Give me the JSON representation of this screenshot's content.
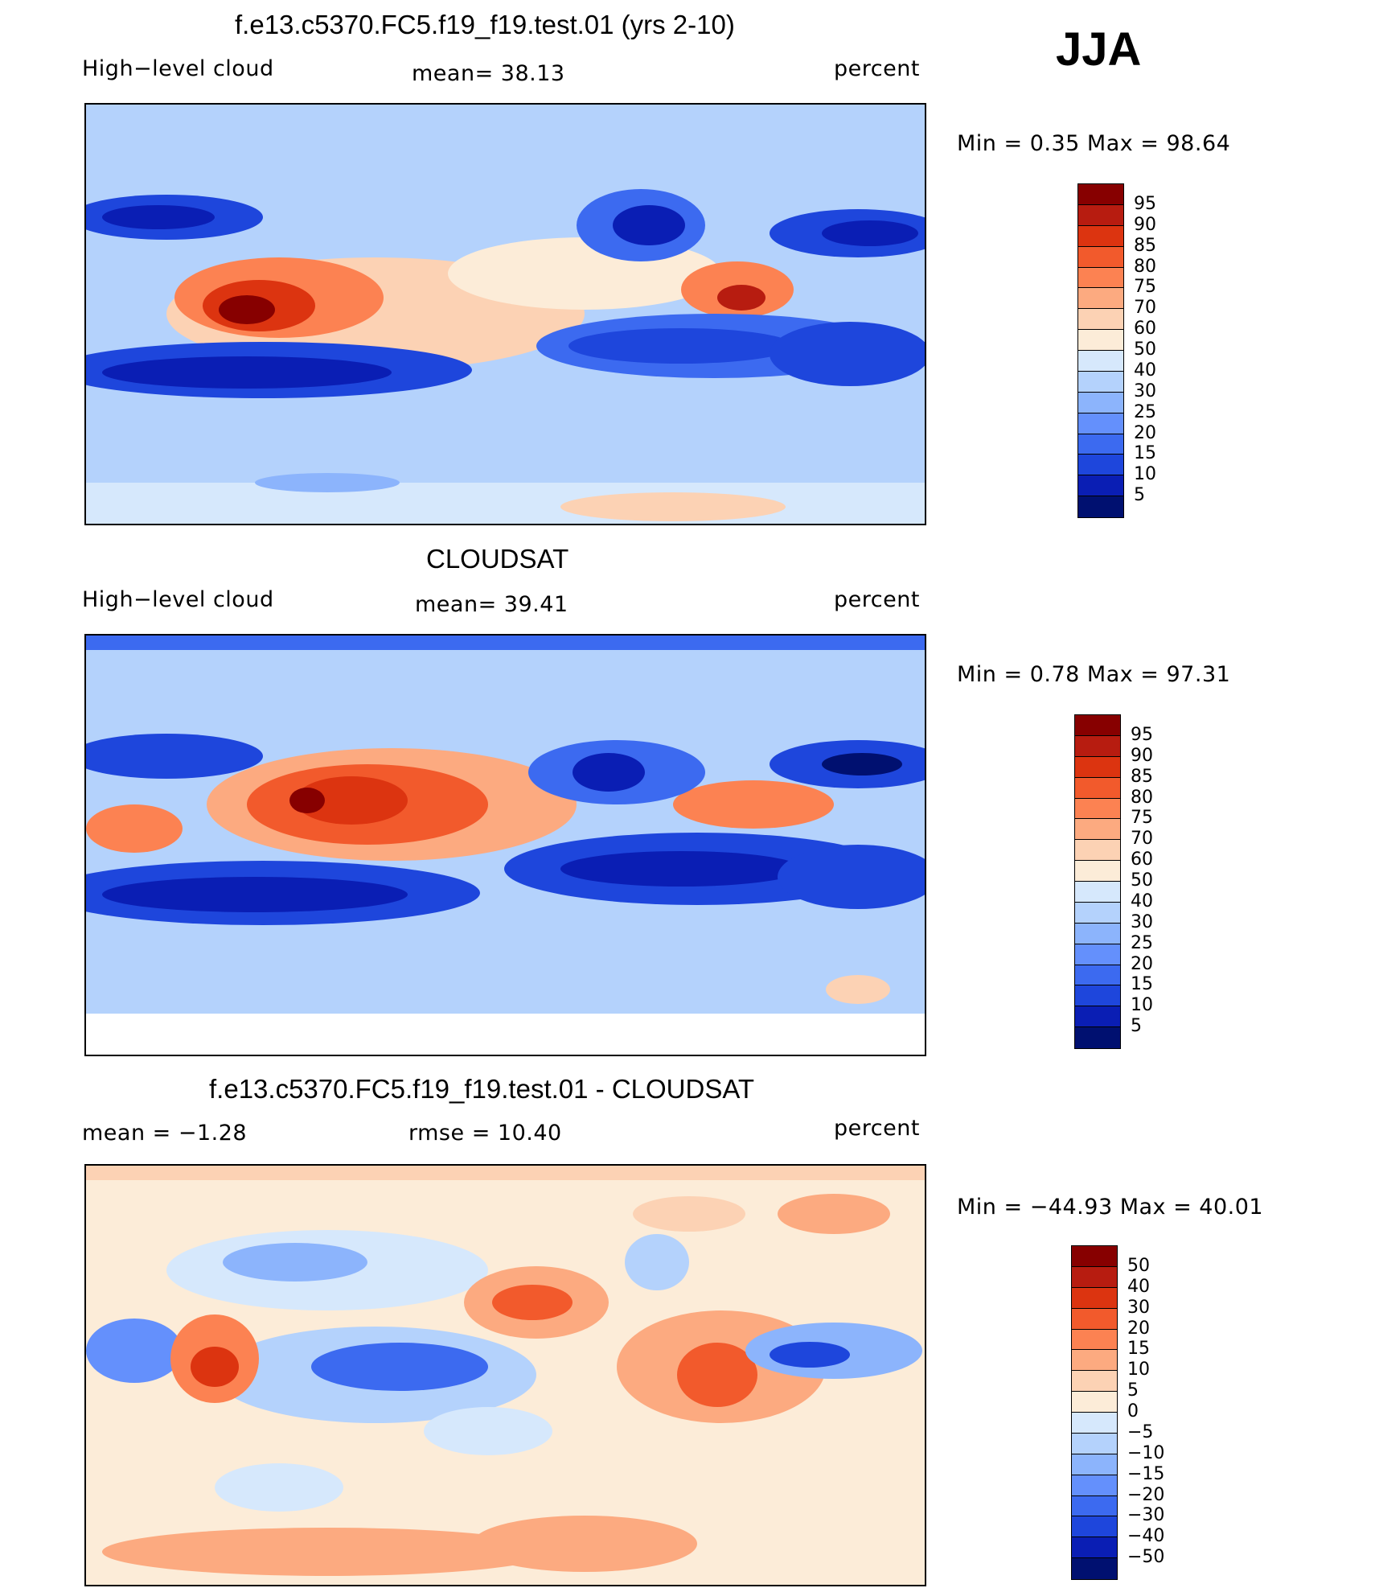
{
  "season": "JJA",
  "panels": [
    {
      "title": "f.e13.c5370.FC5.f19_f19.test.01 (yrs 2-10)",
      "left_label": "High−level cloud",
      "center_label": "mean=   38.13",
      "units": "percent",
      "minmax": "Min =     0.35  Max =    98.64",
      "colorbar": {
        "levels": [
          "95",
          "90",
          "85",
          "80",
          "75",
          "70",
          "60",
          "50",
          "40",
          "30",
          "25",
          "20",
          "15",
          "10",
          "5"
        ],
        "colors": [
          "#870000",
          "#b71c10",
          "#dc3410",
          "#f25a2c",
          "#fc8252",
          "#fcaa80",
          "#fcd2b4",
          "#fcecd8",
          "#d6e8fc",
          "#b4d2fc",
          "#8cb4fc",
          "#6490fc",
          "#3c6af0",
          "#1e46dc",
          "#0a1eb4",
          "#001070"
        ]
      }
    },
    {
      "title": "CLOUDSAT",
      "left_label": "High−level cloud",
      "center_label": "mean=   39.41",
      "units": "percent",
      "minmax": "Min =     0.78  Max =    97.31",
      "colorbar": {
        "levels": [
          "95",
          "90",
          "85",
          "80",
          "75",
          "70",
          "60",
          "50",
          "40",
          "30",
          "25",
          "20",
          "15",
          "10",
          "5"
        ],
        "colors": [
          "#870000",
          "#b71c10",
          "#dc3410",
          "#f25a2c",
          "#fc8252",
          "#fcaa80",
          "#fcd2b4",
          "#fcecd8",
          "#d6e8fc",
          "#b4d2fc",
          "#8cb4fc",
          "#6490fc",
          "#3c6af0",
          "#1e46dc",
          "#0a1eb4",
          "#001070"
        ]
      }
    },
    {
      "title": "f.e13.c5370.FC5.f19_f19.test.01 - CLOUDSAT",
      "left_label": "mean =    −1.28",
      "center_label": "rmse =    10.40",
      "units": "percent",
      "minmax": "Min = −44.93  Max =    40.01",
      "colorbar": {
        "levels": [
          "50",
          "40",
          "30",
          "20",
          "15",
          "10",
          "5",
          "0",
          "−5",
          "−10",
          "−15",
          "−20",
          "−30",
          "−40",
          "−50"
        ],
        "colors": [
          "#870000",
          "#b71c10",
          "#dc3410",
          "#f25a2c",
          "#fc8252",
          "#fcaa80",
          "#fcd2b4",
          "#fcecd8",
          "#d6e8fc",
          "#b4d2fc",
          "#8cb4fc",
          "#6490fc",
          "#3c6af0",
          "#1e46dc",
          "#0a1eb4",
          "#001070"
        ]
      }
    }
  ],
  "chart_data": [
    {
      "type": "heatmap",
      "title": "f.e13.c5370.FC5.f19_f19.test.01 (yrs 2-10)",
      "field": "High-level cloud",
      "units": "percent",
      "mean": 38.13,
      "min": 0.35,
      "max": 98.64,
      "contour_levels": [
        5,
        10,
        15,
        20,
        25,
        30,
        40,
        50,
        60,
        70,
        75,
        80,
        85,
        90,
        95
      ]
    },
    {
      "type": "heatmap",
      "title": "CLOUDSAT",
      "field": "High-level cloud",
      "units": "percent",
      "mean": 39.41,
      "min": 0.78,
      "max": 97.31,
      "contour_levels": [
        5,
        10,
        15,
        20,
        25,
        30,
        40,
        50,
        60,
        70,
        75,
        80,
        85,
        90,
        95
      ]
    },
    {
      "type": "heatmap",
      "title": "f.e13.c5370.FC5.f19_f19.test.01 - CLOUDSAT",
      "units": "percent",
      "mean": -1.28,
      "rmse": 10.4,
      "min": -44.93,
      "max": 40.01,
      "contour_levels": [
        -50,
        -40,
        -30,
        -20,
        -15,
        -10,
        -5,
        0,
        5,
        10,
        15,
        20,
        30,
        40,
        50
      ]
    }
  ]
}
